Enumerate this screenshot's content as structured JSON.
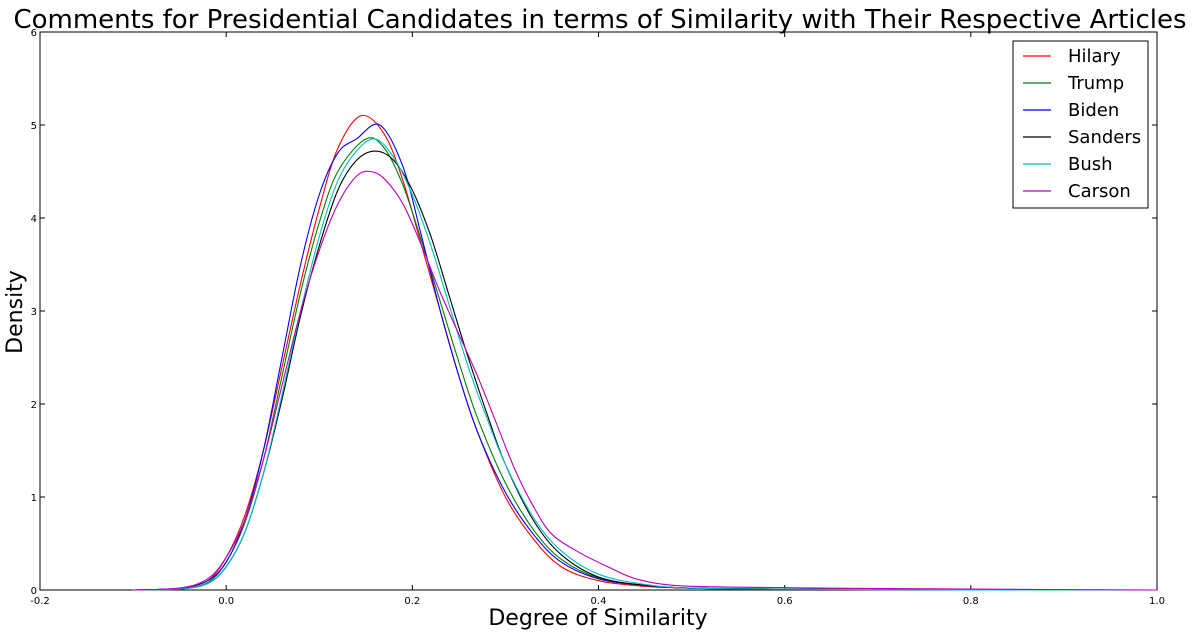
{
  "chart_data": {
    "type": "line",
    "title": "Comments for Presidential Candidates in terms of Similarity with Their Respective Articles",
    "xlabel": "Degree of Similarity",
    "ylabel": "Density",
    "xlim": [
      -0.2,
      1.0
    ],
    "ylim": [
      0,
      6
    ],
    "xticks": [
      "-0.2",
      "0.0",
      "0.2",
      "0.4",
      "0.6",
      "0.8",
      "1.0"
    ],
    "yticks": [
      "0",
      "1",
      "2",
      "3",
      "4",
      "5",
      "6"
    ],
    "grid": false,
    "legend_position": "top-right",
    "series": [
      {
        "name": "Hilary",
        "color": "#ff0000",
        "points": [
          [
            -0.1,
            0
          ],
          [
            -0.05,
            0.02
          ],
          [
            -0.02,
            0.1
          ],
          [
            0.0,
            0.35
          ],
          [
            0.02,
            0.8
          ],
          [
            0.04,
            1.5
          ],
          [
            0.06,
            2.4
          ],
          [
            0.08,
            3.3
          ],
          [
            0.1,
            4.1
          ],
          [
            0.12,
            4.75
          ],
          [
            0.145,
            5.1
          ],
          [
            0.17,
            4.9
          ],
          [
            0.19,
            4.4
          ],
          [
            0.21,
            3.7
          ],
          [
            0.23,
            3.0
          ],
          [
            0.25,
            2.3
          ],
          [
            0.27,
            1.7
          ],
          [
            0.3,
            1.0
          ],
          [
            0.33,
            0.55
          ],
          [
            0.36,
            0.25
          ],
          [
            0.4,
            0.1
          ],
          [
            0.45,
            0.04
          ],
          [
            0.5,
            0.02
          ],
          [
            0.6,
            0.01
          ],
          [
            0.8,
            0.0
          ],
          [
            1.0,
            0.0
          ]
        ]
      },
      {
        "name": "Trump",
        "color": "#008000",
        "points": [
          [
            -0.1,
            0
          ],
          [
            -0.05,
            0.01
          ],
          [
            -0.02,
            0.08
          ],
          [
            0.0,
            0.3
          ],
          [
            0.02,
            0.72
          ],
          [
            0.04,
            1.4
          ],
          [
            0.06,
            2.3
          ],
          [
            0.08,
            3.2
          ],
          [
            0.1,
            3.95
          ],
          [
            0.12,
            4.5
          ],
          [
            0.15,
            4.85
          ],
          [
            0.17,
            4.75
          ],
          [
            0.19,
            4.35
          ],
          [
            0.21,
            3.75
          ],
          [
            0.23,
            3.1
          ],
          [
            0.25,
            2.45
          ],
          [
            0.27,
            1.85
          ],
          [
            0.3,
            1.15
          ],
          [
            0.33,
            0.65
          ],
          [
            0.36,
            0.33
          ],
          [
            0.4,
            0.13
          ],
          [
            0.45,
            0.05
          ],
          [
            0.5,
            0.02
          ],
          [
            0.6,
            0.01
          ],
          [
            0.8,
            0.0
          ],
          [
            1.0,
            0.0
          ]
        ]
      },
      {
        "name": "Biden",
        "color": "#0000ff",
        "points": [
          [
            -0.1,
            0
          ],
          [
            -0.05,
            0.02
          ],
          [
            -0.02,
            0.1
          ],
          [
            0.0,
            0.3
          ],
          [
            0.02,
            0.75
          ],
          [
            0.04,
            1.5
          ],
          [
            0.06,
            2.5
          ],
          [
            0.08,
            3.5
          ],
          [
            0.1,
            4.25
          ],
          [
            0.12,
            4.7
          ],
          [
            0.14,
            4.85
          ],
          [
            0.165,
            5.0
          ],
          [
            0.19,
            4.55
          ],
          [
            0.21,
            3.8
          ],
          [
            0.23,
            3.0
          ],
          [
            0.25,
            2.3
          ],
          [
            0.27,
            1.7
          ],
          [
            0.3,
            1.05
          ],
          [
            0.33,
            0.6
          ],
          [
            0.36,
            0.3
          ],
          [
            0.4,
            0.12
          ],
          [
            0.45,
            0.05
          ],
          [
            0.5,
            0.02
          ],
          [
            0.6,
            0.01
          ],
          [
            0.8,
            0.0
          ],
          [
            1.0,
            0.0
          ]
        ]
      },
      {
        "name": "Sanders",
        "color": "#000000",
        "points": [
          [
            -0.1,
            0
          ],
          [
            -0.05,
            0.01
          ],
          [
            -0.02,
            0.07
          ],
          [
            0.0,
            0.25
          ],
          [
            0.02,
            0.62
          ],
          [
            0.04,
            1.25
          ],
          [
            0.06,
            2.05
          ],
          [
            0.08,
            2.95
          ],
          [
            0.1,
            3.7
          ],
          [
            0.12,
            4.3
          ],
          [
            0.14,
            4.62
          ],
          [
            0.16,
            4.72
          ],
          [
            0.18,
            4.62
          ],
          [
            0.2,
            4.3
          ],
          [
            0.22,
            3.8
          ],
          [
            0.24,
            3.15
          ],
          [
            0.26,
            2.5
          ],
          [
            0.28,
            1.9
          ],
          [
            0.3,
            1.35
          ],
          [
            0.33,
            0.75
          ],
          [
            0.36,
            0.38
          ],
          [
            0.4,
            0.14
          ],
          [
            0.45,
            0.05
          ],
          [
            0.5,
            0.02
          ],
          [
            0.6,
            0.01
          ],
          [
            0.8,
            0.0
          ],
          [
            1.0,
            0.0
          ]
        ]
      },
      {
        "name": "Bush",
        "color": "#00bfbf",
        "points": [
          [
            -0.1,
            0
          ],
          [
            -0.05,
            0.01
          ],
          [
            -0.02,
            0.07
          ],
          [
            0.0,
            0.25
          ],
          [
            0.02,
            0.62
          ],
          [
            0.04,
            1.25
          ],
          [
            0.06,
            2.1
          ],
          [
            0.08,
            3.0
          ],
          [
            0.1,
            3.8
          ],
          [
            0.12,
            4.4
          ],
          [
            0.14,
            4.72
          ],
          [
            0.16,
            4.85
          ],
          [
            0.18,
            4.65
          ],
          [
            0.2,
            4.25
          ],
          [
            0.22,
            3.7
          ],
          [
            0.24,
            3.05
          ],
          [
            0.26,
            2.4
          ],
          [
            0.28,
            1.85
          ],
          [
            0.3,
            1.35
          ],
          [
            0.33,
            0.78
          ],
          [
            0.36,
            0.42
          ],
          [
            0.4,
            0.17
          ],
          [
            0.45,
            0.06
          ],
          [
            0.5,
            0.02
          ],
          [
            0.6,
            0.01
          ],
          [
            0.8,
            0.0
          ],
          [
            1.0,
            0.0
          ]
        ]
      },
      {
        "name": "Carson",
        "color": "#bf00bf",
        "points": [
          [
            -0.1,
            0
          ],
          [
            -0.05,
            0.02
          ],
          [
            -0.02,
            0.12
          ],
          [
            0.0,
            0.35
          ],
          [
            0.02,
            0.75
          ],
          [
            0.04,
            1.4
          ],
          [
            0.06,
            2.2
          ],
          [
            0.08,
            3.0
          ],
          [
            0.1,
            3.65
          ],
          [
            0.12,
            4.15
          ],
          [
            0.14,
            4.45
          ],
          [
            0.155,
            4.5
          ],
          [
            0.17,
            4.42
          ],
          [
            0.19,
            4.15
          ],
          [
            0.21,
            3.7
          ],
          [
            0.23,
            3.2
          ],
          [
            0.25,
            2.75
          ],
          [
            0.27,
            2.3
          ],
          [
            0.29,
            1.8
          ],
          [
            0.31,
            1.3
          ],
          [
            0.33,
            0.9
          ],
          [
            0.35,
            0.6
          ],
          [
            0.38,
            0.4
          ],
          [
            0.41,
            0.25
          ],
          [
            0.44,
            0.12
          ],
          [
            0.48,
            0.05
          ],
          [
            0.55,
            0.03
          ],
          [
            0.65,
            0.02
          ],
          [
            0.8,
            0.01
          ],
          [
            1.0,
            0.0
          ]
        ]
      }
    ]
  }
}
